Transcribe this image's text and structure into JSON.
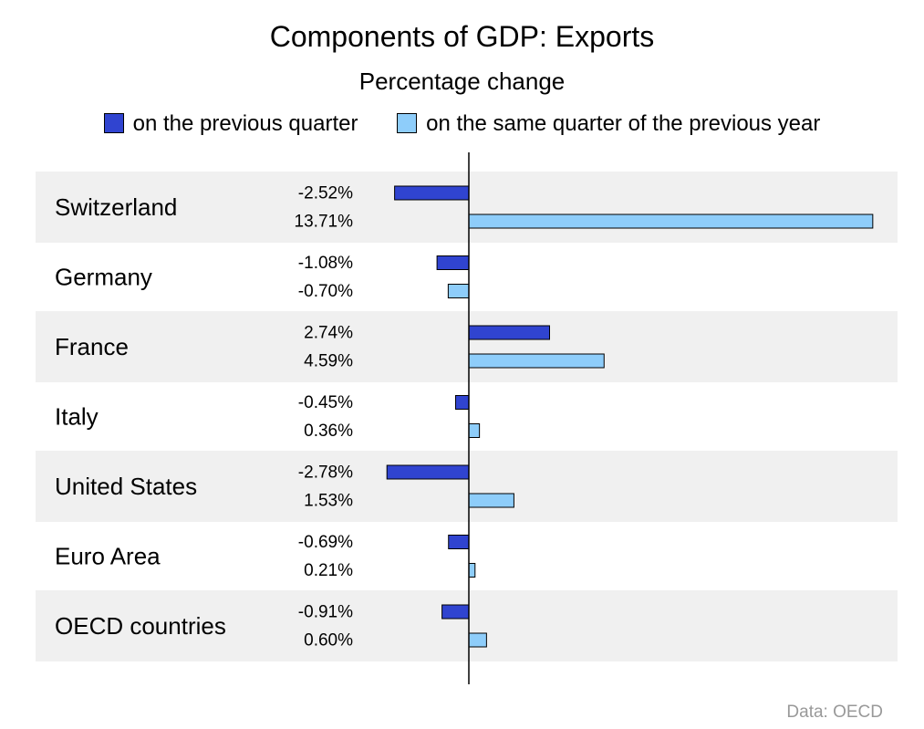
{
  "title": "Components of GDP: Exports",
  "subtitle": "Percentage change",
  "source": "Data: OECD",
  "colors": {
    "prev_quarter": "#3044d0",
    "prev_year": "#8ecdfa",
    "band": "#f0f0f0"
  },
  "chart_data": {
    "type": "bar",
    "orientation": "horizontal",
    "categories": [
      "Switzerland",
      "Germany",
      "France",
      "Italy",
      "United States",
      "Euro Area",
      "OECD countries"
    ],
    "series": [
      {
        "name": "on the previous quarter",
        "values": [
          -2.52,
          -1.08,
          2.74,
          -0.45,
          -2.78,
          -0.69,
          -0.91
        ],
        "labels": [
          "-2.52%",
          "-1.08%",
          "2.74%",
          "-0.45%",
          "-2.78%",
          "-0.69%",
          "-0.91%"
        ]
      },
      {
        "name": "on the same quarter of the previous year",
        "values": [
          13.71,
          -0.7,
          4.59,
          0.36,
          1.53,
          0.21,
          0.6
        ],
        "labels": [
          "13.71%",
          "-0.70%",
          "4.59%",
          "0.36%",
          "1.53%",
          "0.21%",
          "0.60%"
        ]
      }
    ],
    "legend_position": "top"
  }
}
